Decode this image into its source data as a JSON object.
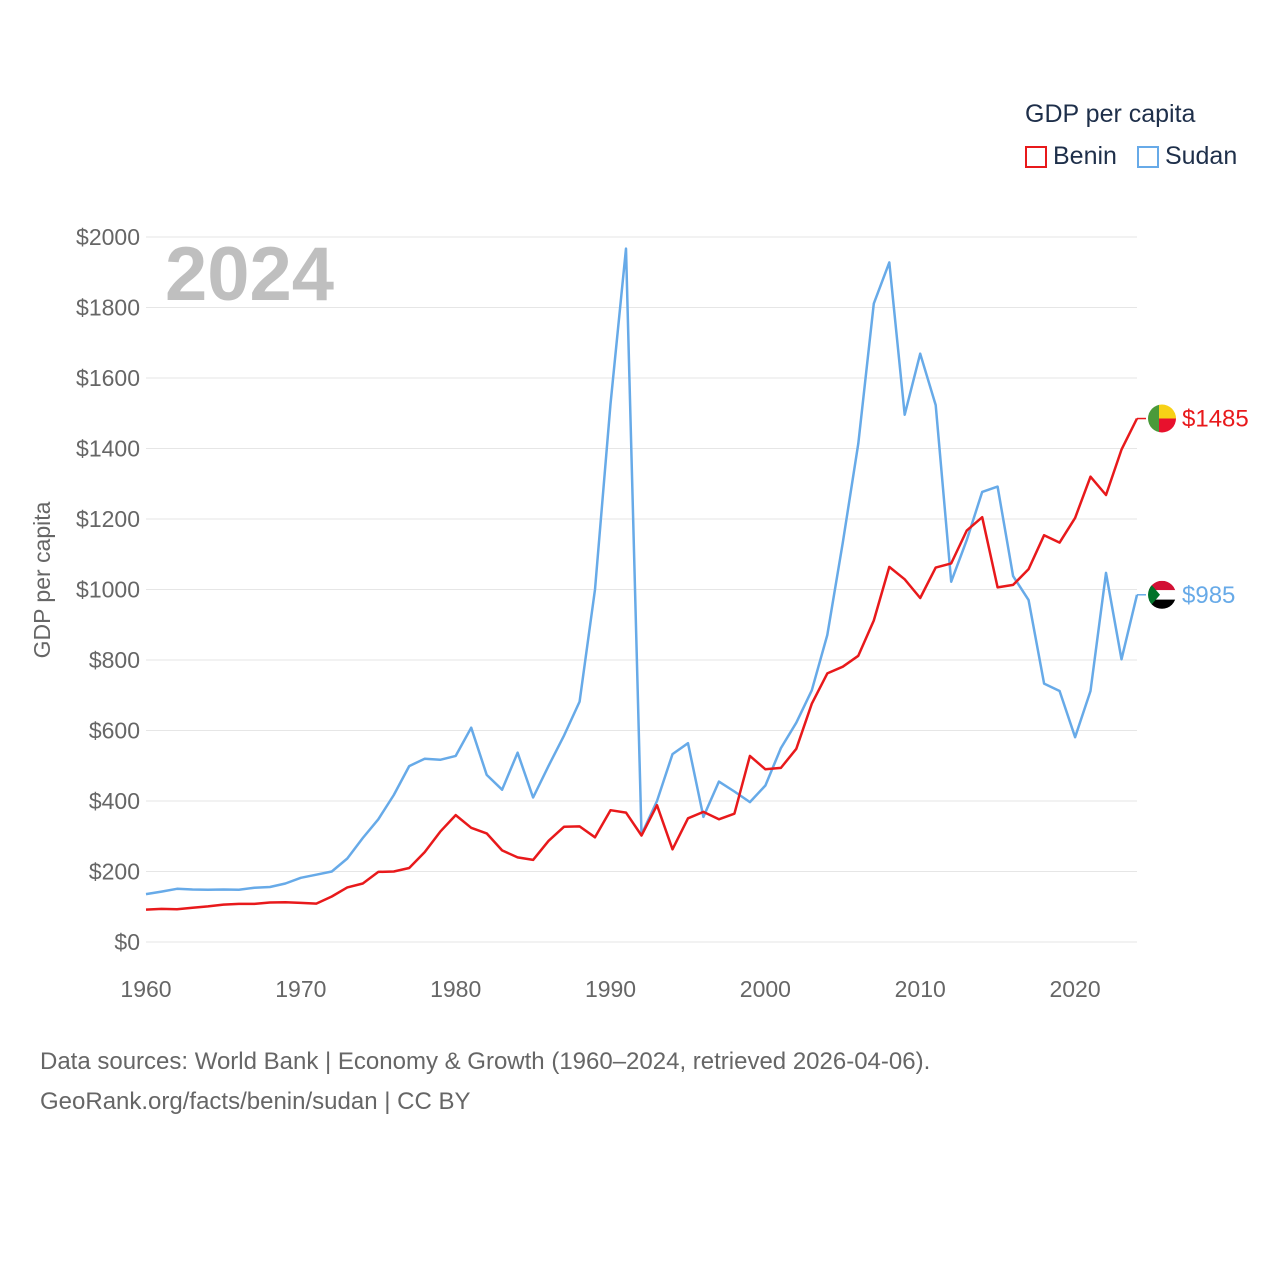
{
  "legend": {
    "title": "GDP per capita",
    "items": [
      {
        "name": "Benin",
        "color": "#e8191b"
      },
      {
        "name": "Sudan",
        "color": "#67aae8"
      }
    ]
  },
  "footer": {
    "line1": "Data sources: World Bank | Economy & Growth (1960–2024, retrieved 2026-04-06).",
    "line2": "GeoRank.org/facts/benin/sudan | CC BY"
  },
  "chart_data": {
    "type": "line",
    "title": "GDP per capita",
    "year_label": "2024",
    "xlabel": "",
    "ylabel": "GDP per capita",
    "xlim": [
      1960,
      2024
    ],
    "ylim": [
      0,
      2000
    ],
    "x_ticks": [
      1960,
      1970,
      1980,
      1990,
      2000,
      2010,
      2020
    ],
    "y_ticks": [
      0,
      200,
      400,
      600,
      800,
      1000,
      1200,
      1400,
      1600,
      1800,
      2000
    ],
    "y_tick_labels": [
      "$0",
      "$200",
      "$400",
      "$600",
      "$800",
      "$1000",
      "$1200",
      "$1400",
      "$1600",
      "$1800",
      "$2000"
    ],
    "grid": true,
    "x": [
      1960,
      1961,
      1962,
      1963,
      1964,
      1965,
      1966,
      1967,
      1968,
      1969,
      1970,
      1971,
      1972,
      1973,
      1974,
      1975,
      1976,
      1977,
      1978,
      1979,
      1980,
      1981,
      1982,
      1983,
      1984,
      1985,
      1986,
      1987,
      1988,
      1989,
      1990,
      1991,
      1992,
      1993,
      1994,
      1995,
      1996,
      1997,
      1998,
      1999,
      2000,
      2001,
      2002,
      2003,
      2004,
      2005,
      2006,
      2007,
      2008,
      2009,
      2010,
      2011,
      2012,
      2013,
      2014,
      2015,
      2016,
      2017,
      2018,
      2019,
      2020,
      2021,
      2022,
      2023,
      2024
    ],
    "series": [
      {
        "name": "Benin",
        "color": "#e8191b",
        "end_label": "$1485",
        "values": [
          92,
          94,
          93,
          97,
          101,
          106,
          108,
          108,
          112,
          113,
          111,
          109,
          129,
          155,
          166,
          199,
          200,
          210,
          255,
          313,
          360,
          324,
          308,
          260,
          240,
          233,
          287,
          327,
          328,
          297,
          374,
          367,
          302,
          388,
          263,
          351,
          369,
          348,
          364,
          528,
          490,
          494,
          548,
          676,
          762,
          781,
          812,
          912,
          1064,
          1029,
          976,
          1062,
          1074,
          1167,
          1205,
          1006,
          1013,
          1058,
          1154,
          1133,
          1203,
          1320,
          1268,
          1397,
          1485
        ]
      },
      {
        "name": "Sudan",
        "color": "#67aae8",
        "end_label": "$985",
        "values": [
          136,
          143,
          151,
          149,
          148,
          149,
          148,
          154,
          156,
          166,
          182,
          191,
          200,
          237,
          295,
          348,
          417,
          499,
          520,
          517,
          528,
          608,
          474,
          432,
          537,
          410,
          500,
          586,
          682,
          1000,
          1526,
          1967,
          305,
          400,
          533,
          564,
          355,
          455,
          427,
          397,
          444,
          550,
          622,
          714,
          871,
          1133,
          1414,
          1811,
          1928,
          1496,
          1669,
          1523,
          1022,
          1140,
          1277,
          1292,
          1038,
          970,
          733,
          712,
          581,
          712,
          1047,
          802,
          985
        ]
      }
    ]
  }
}
